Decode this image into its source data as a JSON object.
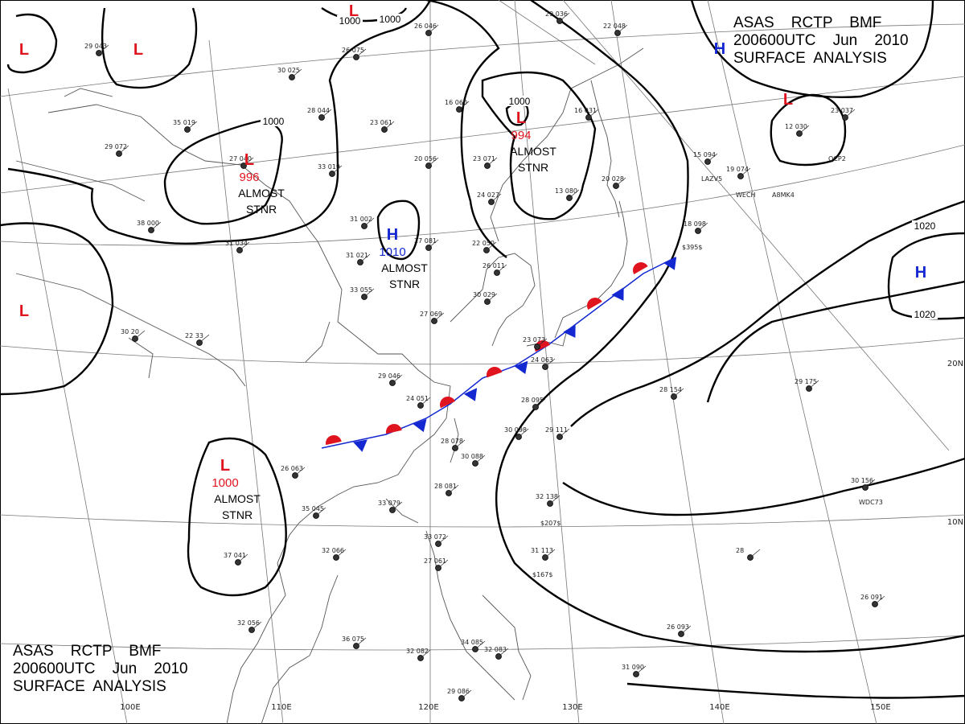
{
  "header": {
    "line1": "ASAS    RCTP    BMF",
    "line2": "200600UTC    Jun    2010",
    "line3": "SURFACE  ANALYSIS"
  },
  "footer": {
    "line1": "ASAS    RCTP    BMF",
    "line2": "200600UTC    Jun    2010",
    "line3": "SURFACE  ANALYSIS"
  },
  "colors": {
    "low": "#e0141e",
    "high": "#1428d2",
    "isobar": "#000000",
    "warm_front": "#e0141e",
    "cold_front": "#1428d2"
  },
  "pressure_centers": [
    {
      "type": "L",
      "value": ""
    },
    {
      "type": "L",
      "value": ""
    },
    {
      "type": "L",
      "value": ""
    },
    {
      "type": "L",
      "value": "996",
      "note": [
        "ALMOST",
        "STNR"
      ]
    },
    {
      "type": "L",
      "value": "994",
      "note": [
        "ALMOST",
        "STNR"
      ]
    },
    {
      "type": "L",
      "value": ""
    },
    {
      "type": "L",
      "value": "1000",
      "note": [
        "ALMOST",
        "STNR"
      ]
    },
    {
      "type": "L",
      "value": ""
    },
    {
      "type": "H",
      "value": ""
    },
    {
      "type": "H",
      "value": "1010",
      "note": [
        "ALMOST",
        "STNR"
      ]
    },
    {
      "type": "H",
      "value": ""
    }
  ],
  "isobar_labels": [
    "1000",
    "1000",
    "1000",
    "1000",
    "1020",
    "1020"
  ],
  "grid_labels": [
    "110E",
    "120E",
    "130E",
    "140E",
    "150E",
    "10N",
    "20N",
    "100E"
  ],
  "station_labels": [
    "LAZV5",
    "WECH",
    "A8MK4",
    "OCP2",
    "WDC73",
    "$207$",
    "$167$",
    "$395$"
  ],
  "stations": [
    "29 043",
    "30 025",
    "28 044",
    "35 019",
    "29 072",
    "27 040",
    "33 019",
    "38 000",
    "31 034",
    "23 061",
    "20 056",
    "16 060",
    "26 046",
    "26 075",
    "24 027",
    "22 050",
    "27 081",
    "31 002",
    "31 021",
    "33 055",
    "27 069",
    "29 046",
    "24 051",
    "26 011",
    "30 029",
    "23 073",
    "24 063",
    "28 095",
    "30 098",
    "29 111",
    "28 078",
    "30 088",
    "28 081",
    "33 079",
    "35 045",
    "26 063",
    "32 066",
    "33 072",
    "27 061",
    "32 138",
    "31 113",
    "28 154",
    "29 175",
    "30 156",
    "26 091",
    "26 093",
    "31 090",
    "29 086",
    "36 075",
    "32 082",
    "34 085",
    "32 083",
    "37 041",
    "32 056",
    "22 33",
    "30 20",
    "16 031",
    "20 028",
    "18 098",
    "15 094",
    "12 030",
    "19 074",
    "23 037",
    "13 080",
    "28",
    "29 036",
    "23 071",
    "22 048"
  ]
}
